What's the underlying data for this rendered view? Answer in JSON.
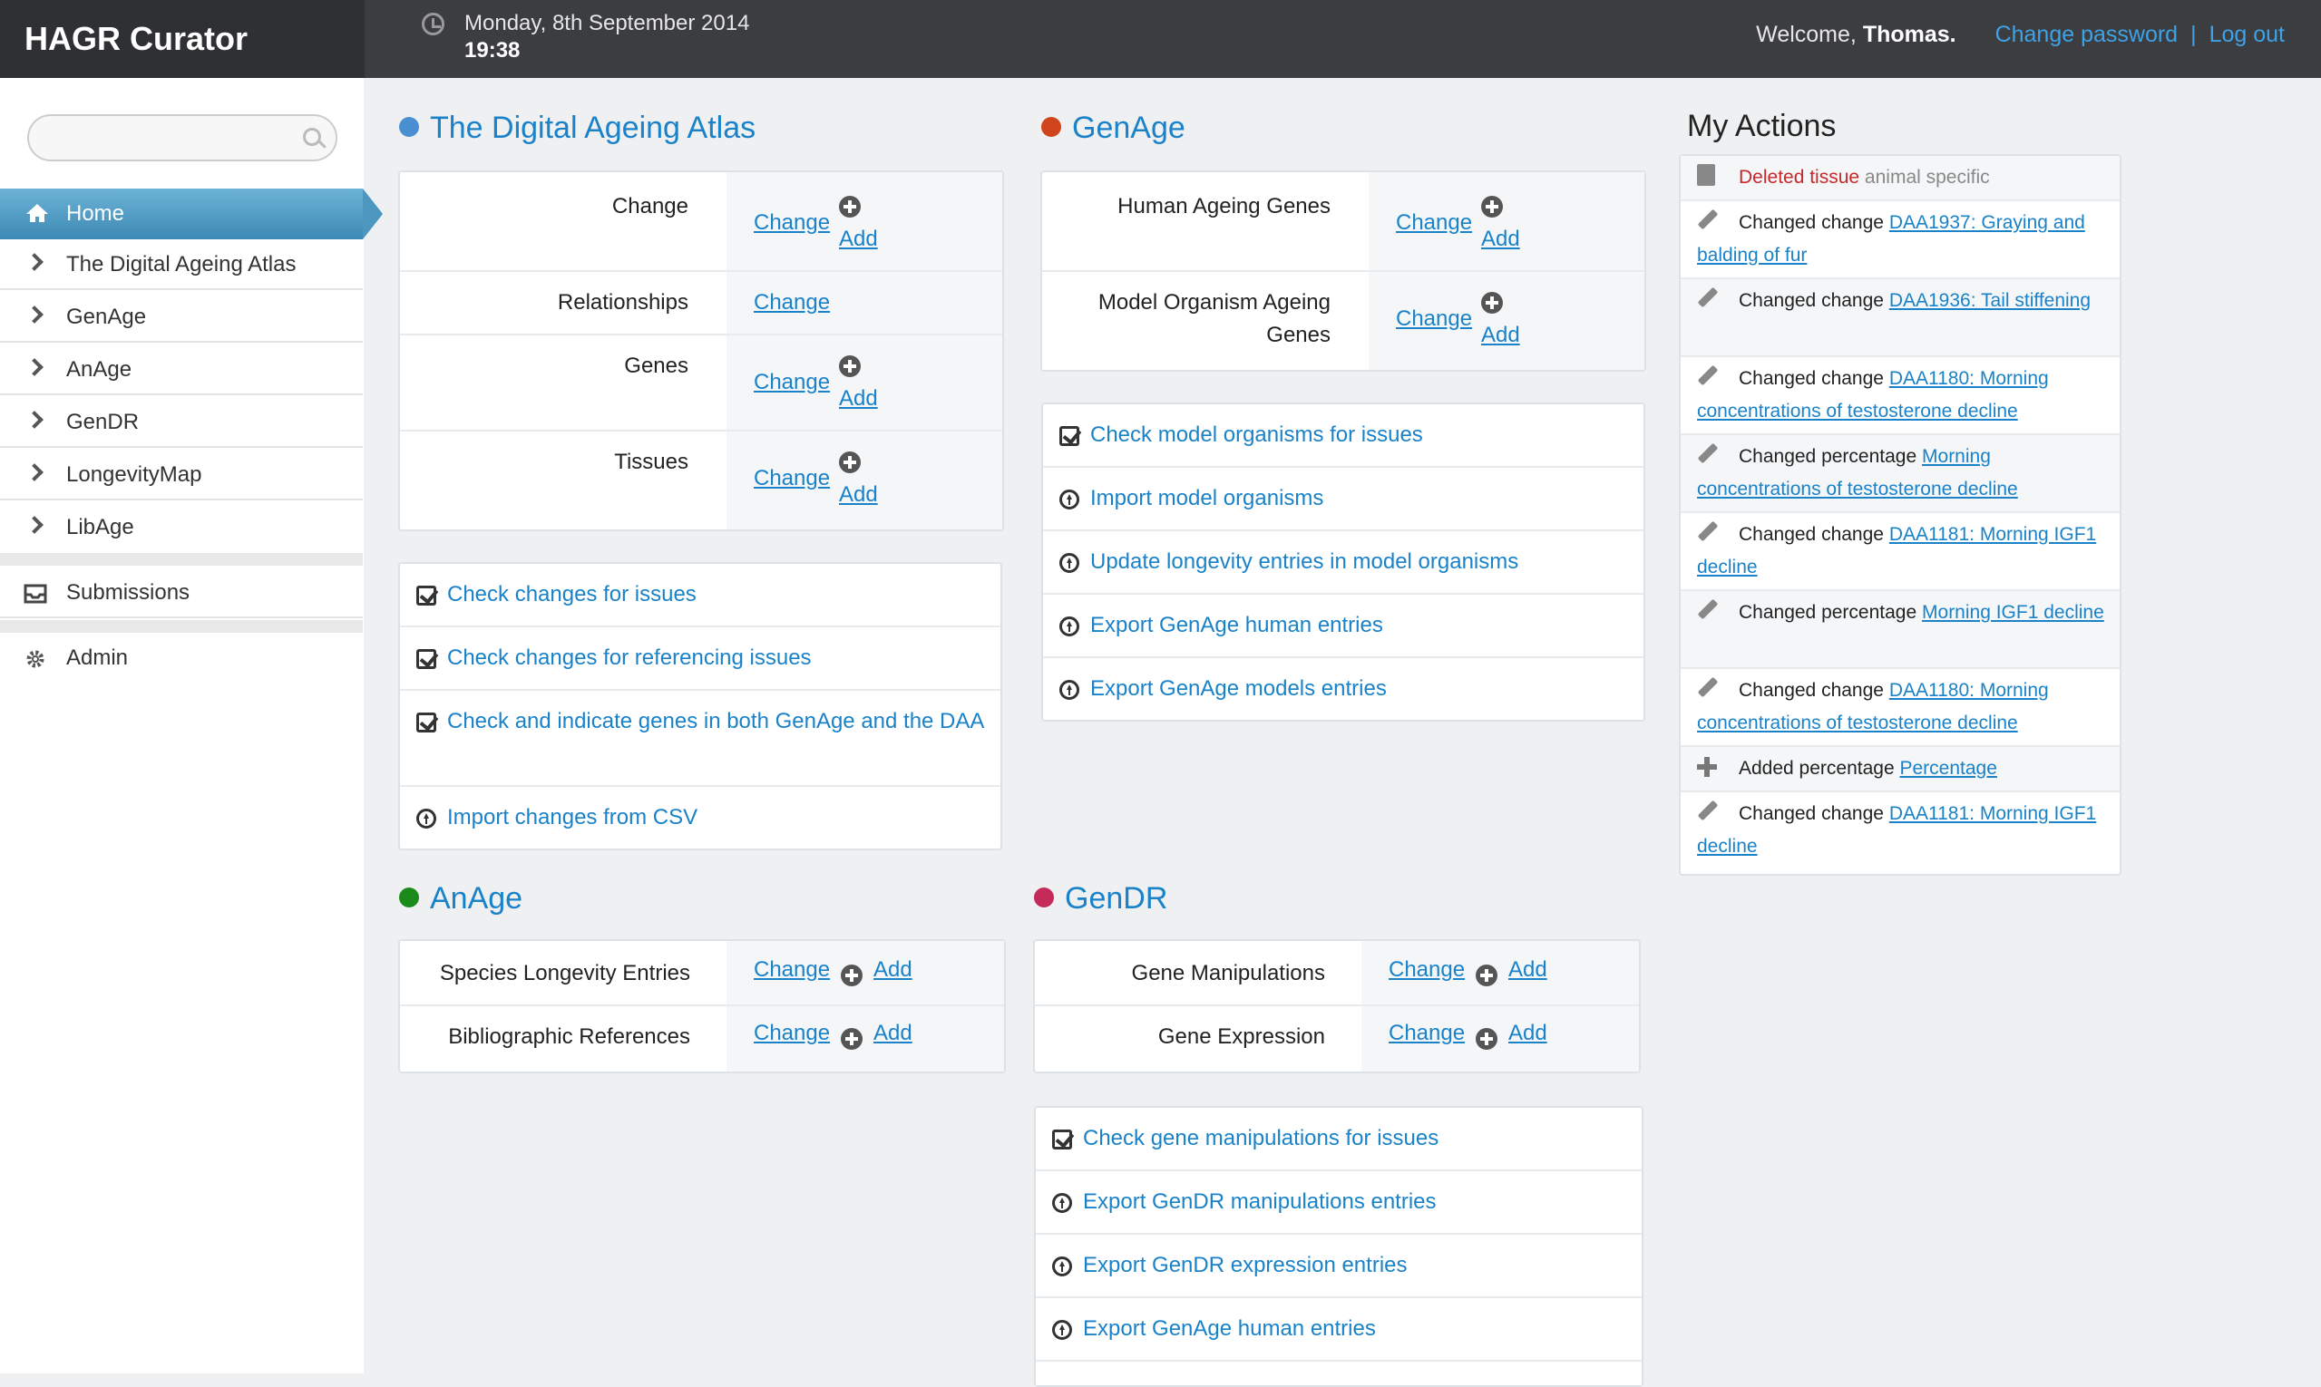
{
  "app": {
    "title": "HAGR Curator"
  },
  "header": {
    "date": "Monday, 8th September 2014",
    "time": "19:38",
    "welcome_prefix": "Welcome, ",
    "user": "Thomas.",
    "change_password": "Change password",
    "separator": "|",
    "logout": "Log out"
  },
  "search": {
    "placeholder": ""
  },
  "sidebar": {
    "items": [
      {
        "label": "Home",
        "icon": "home-icon"
      },
      {
        "label": "The Digital Ageing Atlas",
        "icon": "chevron-right-icon"
      },
      {
        "label": "GenAge",
        "icon": "chevron-right-icon"
      },
      {
        "label": "AnAge",
        "icon": "chevron-right-icon"
      },
      {
        "label": "GenDR",
        "icon": "chevron-right-icon"
      },
      {
        "label": "LongevityMap",
        "icon": "chevron-right-icon"
      },
      {
        "label": "LibAge",
        "icon": "chevron-right-icon"
      }
    ],
    "submissions": "Submissions",
    "admin": "Admin"
  },
  "daa": {
    "title": "The Digital Ageing Atlas",
    "color": "#4a90d0",
    "rows": [
      {
        "name": "Change",
        "change": "Change",
        "add": "Add"
      },
      {
        "name": "Relationships",
        "change": "Change"
      },
      {
        "name": "Genes",
        "change": "Change",
        "add": "Add"
      },
      {
        "name": "Tissues",
        "change": "Change",
        "add": "Add"
      }
    ],
    "actions": [
      {
        "label": "Check changes for issues",
        "icon": "checkbox-icon"
      },
      {
        "label": "Check changes for referencing issues",
        "icon": "checkbox-icon"
      },
      {
        "label": "Check and indicate genes in both GenAge and the DAA",
        "icon": "checkbox-icon"
      },
      {
        "label": "Import changes from CSV",
        "icon": "upload-icon"
      }
    ]
  },
  "genage": {
    "title": "GenAge",
    "color": "#d0451b",
    "rows": [
      {
        "name": "Human Ageing Genes",
        "change": "Change",
        "add": "Add"
      },
      {
        "name_line1": "Model Organism Ageing",
        "name_line2": "Genes",
        "change": "Change",
        "add": "Add"
      }
    ],
    "actions": [
      {
        "label": "Check model organisms for issues",
        "icon": "checkbox-icon"
      },
      {
        "label": "Import model organisms",
        "icon": "upload-icon"
      },
      {
        "label": "Update longevity entries in model organisms",
        "icon": "upload-icon"
      },
      {
        "label": "Export GenAge human entries",
        "icon": "upload-icon"
      },
      {
        "label": "Export GenAge models entries",
        "icon": "upload-icon"
      }
    ]
  },
  "anage": {
    "title": "AnAge",
    "color": "#1a8a1a",
    "rows": [
      {
        "name": "Species Longevity Entries",
        "change": "Change",
        "add": "Add"
      },
      {
        "name": "Bibliographic References",
        "change": "Change",
        "add": "Add"
      }
    ]
  },
  "gendr": {
    "title": "GenDR",
    "color": "#c42a5a",
    "rows": [
      {
        "name": "Gene Manipulations",
        "change": "Change",
        "add": "Add"
      },
      {
        "name": "Gene Expression",
        "change": "Change",
        "add": "Add"
      }
    ],
    "actions": [
      {
        "label": "Check gene manipulations for issues",
        "icon": "checkbox-icon"
      },
      {
        "label": "Export GenDR manipulations entries",
        "icon": "upload-icon"
      },
      {
        "label": "Export GenDR expression entries",
        "icon": "upload-icon"
      },
      {
        "label": "Export GenAge human entries",
        "icon": "upload-icon"
      }
    ]
  },
  "my_actions": {
    "title": "My Actions",
    "items": [
      {
        "icon": "trash-icon",
        "verb": "Deleted tissue",
        "detail": "animal specific"
      },
      {
        "icon": "pencil-icon",
        "verb": "Changed change",
        "link": "DAA1937: Graying and balding of fur"
      },
      {
        "icon": "pencil-icon",
        "verb": "Changed change",
        "link": "DAA1936: Tail stiffening"
      },
      {
        "icon": "pencil-icon",
        "verb": "Changed change",
        "link": "DAA1180: Morning concentrations of testosterone decline"
      },
      {
        "icon": "pencil-icon",
        "verb": "Changed percentage",
        "link": "Morning concentrations of testosterone decline"
      },
      {
        "icon": "pencil-icon",
        "verb": "Changed change",
        "link": "DAA1181: Morning IGF1 decline"
      },
      {
        "icon": "pencil-icon",
        "verb": "Changed percentage",
        "link": "Morning IGF1 decline"
      },
      {
        "icon": "pencil-icon",
        "verb": "Changed change",
        "link": "DAA1180: Morning concentrations of testosterone decline"
      },
      {
        "icon": "plus-icon",
        "verb": "Added percentage",
        "link": "Percentage"
      },
      {
        "icon": "pencil-icon",
        "verb": "Changed change",
        "link": "DAA1181: Morning IGF1 decline"
      }
    ]
  }
}
